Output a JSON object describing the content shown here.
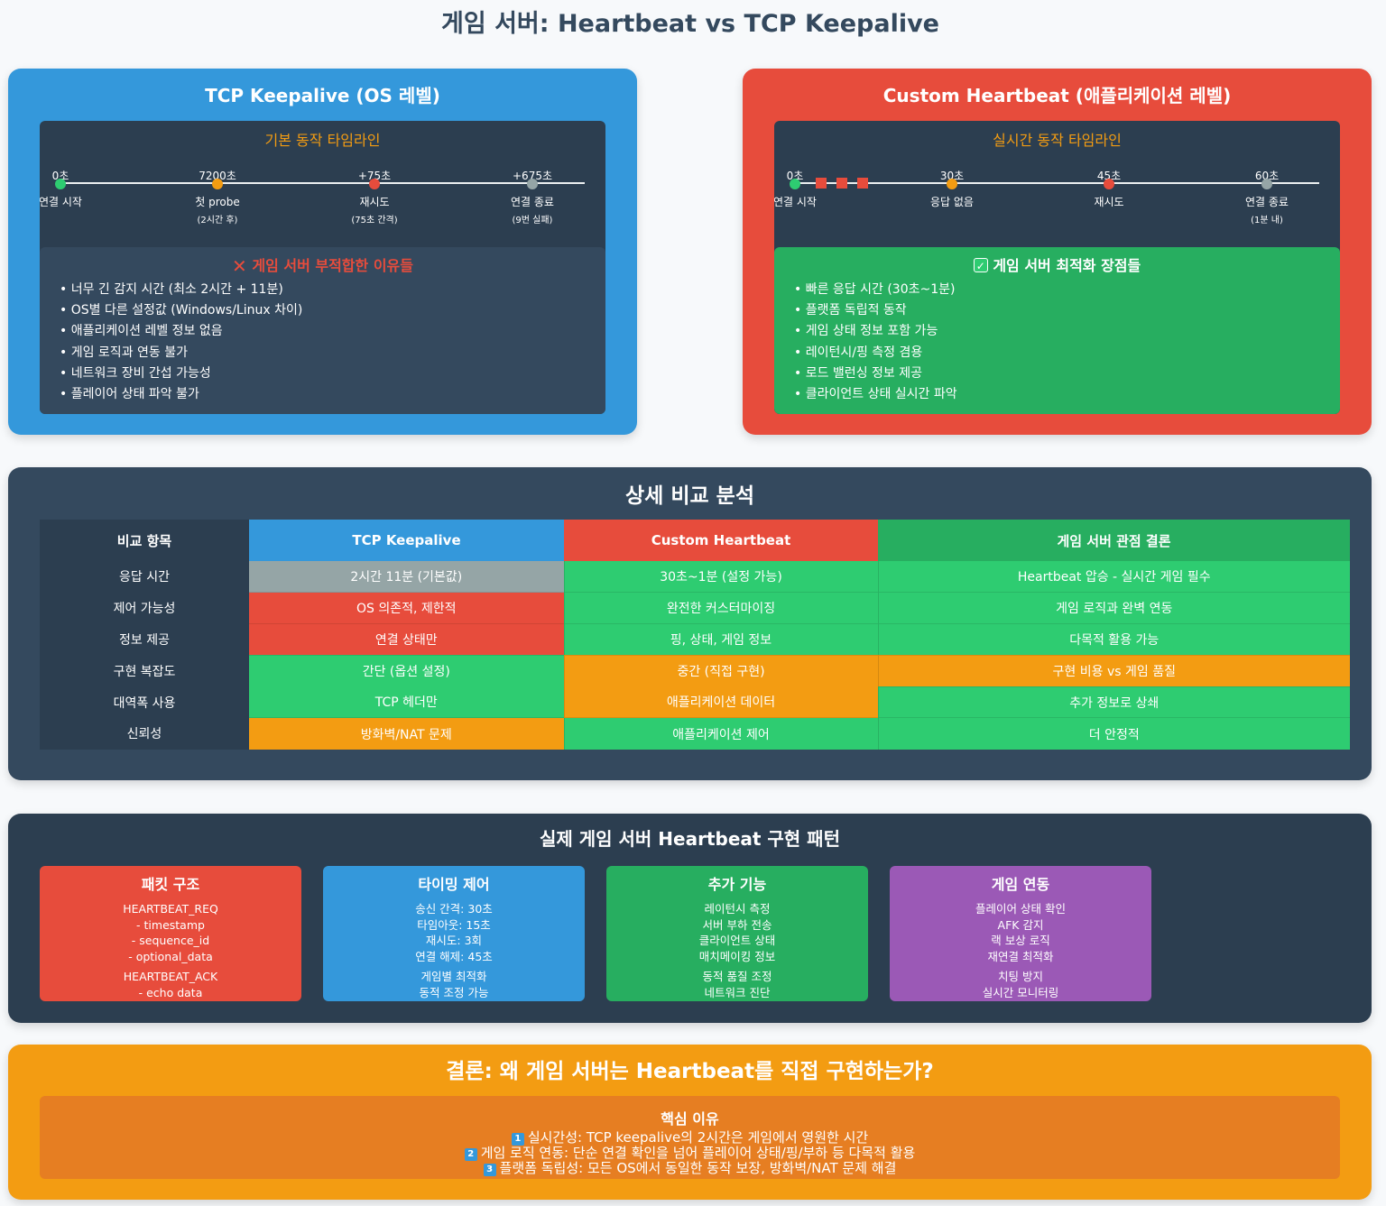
{
  "title": "게임 서버: Heartbeat vs TCP Keepalive",
  "tcp": {
    "title": "TCP Keepalive (OS 레벨)",
    "timeline_title": "기본 동작 타임라인",
    "points": [
      {
        "time": "0초",
        "label": "연결 시작",
        "sub": ""
      },
      {
        "time": "7200초",
        "label": "첫 probe",
        "sub": "(2시간 후)"
      },
      {
        "time": "+75초",
        "label": "재시도",
        "sub": "(75초 간격)"
      },
      {
        "time": "+675초",
        "label": "연결 종료",
        "sub": "(9번 실패)"
      }
    ],
    "reason_icon": "✕",
    "reason_title": "게임 서버 부적합한 이유들",
    "reasons": [
      "너무 긴 감지 시간 (최소 2시간 + 11분)",
      "OS별 다른 설정값 (Windows/Linux 차이)",
      "애플리케이션 레벨 정보 없음",
      "게임 로직과 연동 불가",
      "네트워크 장비 간섭 가능성",
      "플레이어 상태 파악 불가"
    ]
  },
  "heartbeat": {
    "title": "Custom Heartbeat (애플리케이션 레벨)",
    "timeline_title": "실시간 동작 타임라인",
    "points": [
      {
        "time": "0초",
        "label": "연결 시작",
        "sub": ""
      },
      {
        "time": "30초",
        "label": "응답 없음",
        "sub": ""
      },
      {
        "time": "45초",
        "label": "재시도",
        "sub": ""
      },
      {
        "time": "60초",
        "label": "연결 종료",
        "sub": "(1분 내)"
      }
    ],
    "reason_icon": "✓",
    "reason_title": "게임 서버 최적화 장점들",
    "reasons": [
      "빠른 응답 시간 (30초~1분)",
      "플랫폼 독립적 동작",
      "게임 상태 정보 포함 가능",
      "레이턴시/핑 측정 겸용",
      "로드 밸런싱 정보 제공",
      "클라이언트 상태 실시간 파악"
    ]
  },
  "comparison": {
    "title": "상세 비교 분석",
    "headers": [
      "비교 항목",
      "TCP Keepalive",
      "Custom Heartbeat",
      "게임 서버 관점 결론"
    ],
    "rows": [
      [
        "응답 시간",
        "2시간 11분 (기본값)",
        "30초~1분 (설정 가능)",
        "Heartbeat 압승 - 실시간 게임 필수"
      ],
      [
        "제어 가능성",
        "OS 의존적, 제한적",
        "완전한 커스터마이징",
        "게임 로직과 완벽 연동"
      ],
      [
        "정보 제공",
        "연결 상태만",
        "핑, 상태, 게임 정보",
        "다목적 활용 가능"
      ],
      [
        "구현 복잡도",
        "간단 (옵션 설정)",
        "중간 (직접 구현)",
        "구현 비용 vs 게임 품질"
      ],
      [
        "대역폭 사용",
        "TCP 헤더만",
        "애플리케이션 데이터",
        "추가 정보로 상쇄"
      ],
      [
        "신뢰성",
        "방화벽/NAT 문제",
        "애플리케이션 제어",
        "더 안정적"
      ]
    ]
  },
  "implementation": {
    "title": "실제 게임 서버 Heartbeat 구현 패턴",
    "cards": [
      {
        "title": "패킷 구조",
        "group1": [
          "HEARTBEAT_REQ",
          "- timestamp",
          "- sequence_id",
          "- optional_data"
        ],
        "group2": [
          "HEARTBEAT_ACK",
          "- echo data"
        ]
      },
      {
        "title": "타이밍 제어",
        "group1": [
          "송신 간격: 30초",
          "타임아웃: 15초",
          "재시도: 3회",
          "연결 해제: 45초"
        ],
        "group2": [
          "게임별 최적화",
          "동적 조정 가능"
        ]
      },
      {
        "title": "추가 기능",
        "group1": [
          "레이턴시 측정",
          "서버 부하 전송",
          "클라이언트 상태",
          "매치메이킹 정보"
        ],
        "group2": [
          "동적 품질 조정",
          "네트워크 진단"
        ]
      },
      {
        "title": "게임 연동",
        "group1": [
          "플레이어 상태 확인",
          "AFK 감지",
          "랙 보상 로직",
          "재연결 최적화"
        ],
        "group2": [
          "치팅 방지",
          "실시간 모니터링"
        ]
      }
    ]
  },
  "conclusion": {
    "title": "결론: 왜 게임 서버는 Heartbeat를 직접 구현하는가?",
    "subtitle": "핵심 이유",
    "reasons": [
      {
        "num": "1",
        "text": "실시간성: TCP keepalive의 2시간은 게임에서 영원한 시간"
      },
      {
        "num": "2",
        "text": "게임 로직 연동: 단순 연결 확인을 넘어 플레이어 상태/핑/부하 등 다목적 활용"
      },
      {
        "num": "3",
        "text": "플랫폼 독립성: 모든 OS에서 동일한 동작 보장, 방화벽/NAT 문제 해결"
      }
    ]
  },
  "colors": {
    "blue": "#3498db",
    "red": "#e74c3c",
    "green": "#27ae60",
    "light_green": "#2ecc71",
    "orange": "#f39c12",
    "purple": "#9b59b6",
    "gray": "#95a5a6",
    "dark": "#2c3e50",
    "slate": "#34495e"
  },
  "cell_colors": [
    [
      "gray",
      "lgreen",
      "lgreen"
    ],
    [
      "red",
      "lgreen",
      "lgreen"
    ],
    [
      "red",
      "lgreen",
      "lgreen"
    ],
    [
      "lgreen",
      "orange",
      "orange"
    ],
    [
      "lgreen",
      "orange",
      "lgreen"
    ],
    [
      "orange",
      "lgreen",
      "lgreen"
    ]
  ]
}
